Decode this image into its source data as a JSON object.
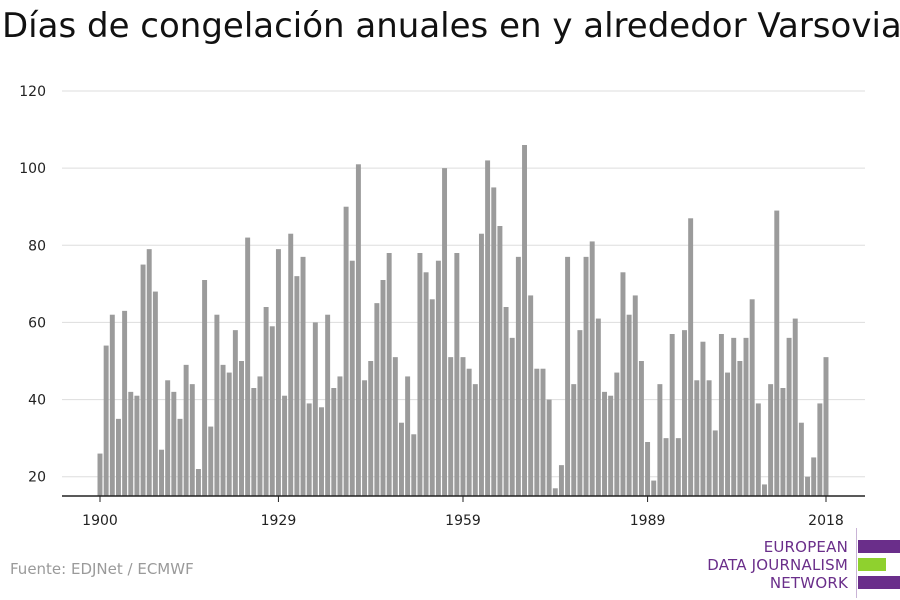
{
  "title": "Días de congelación anuales en y alrededor Varsovia",
  "source": "Fuente: EDJNet / ECMWF",
  "logo": {
    "line1": "EUROPEAN",
    "line2": "DATA JOURNALISM",
    "line3": "NETWORK",
    "colors": {
      "purple": "#6a2e8a",
      "green": "#8fd12e"
    }
  },
  "chart_data": {
    "type": "bar",
    "title": "Días de congelación anuales en y alrededor Varsovia",
    "xlabel": "",
    "ylabel": "",
    "x": [
      1900,
      1901,
      1902,
      1903,
      1904,
      1905,
      1906,
      1907,
      1908,
      1909,
      1910,
      1911,
      1912,
      1913,
      1914,
      1915,
      1916,
      1917,
      1918,
      1919,
      1920,
      1921,
      1922,
      1923,
      1924,
      1925,
      1926,
      1927,
      1928,
      1929,
      1930,
      1931,
      1932,
      1933,
      1934,
      1935,
      1936,
      1937,
      1938,
      1939,
      1940,
      1941,
      1942,
      1943,
      1944,
      1945,
      1946,
      1947,
      1948,
      1949,
      1950,
      1951,
      1952,
      1953,
      1954,
      1955,
      1956,
      1957,
      1958,
      1959,
      1960,
      1961,
      1962,
      1963,
      1964,
      1965,
      1966,
      1967,
      1968,
      1969,
      1970,
      1971,
      1972,
      1973,
      1974,
      1975,
      1976,
      1977,
      1978,
      1979,
      1980,
      1981,
      1982,
      1983,
      1984,
      1985,
      1986,
      1987,
      1988,
      1989,
      1990,
      1991,
      1992,
      1993,
      1994,
      1995,
      1996,
      1997,
      1998,
      1999,
      2000,
      2001,
      2002,
      2003,
      2004,
      2005,
      2006,
      2007,
      2008,
      2009,
      2010,
      2011,
      2012,
      2013,
      2014,
      2015,
      2016,
      2017,
      2018
    ],
    "values": [
      26,
      54,
      62,
      35,
      63,
      42,
      41,
      75,
      79,
      68,
      27,
      45,
      42,
      35,
      49,
      44,
      22,
      71,
      33,
      62,
      49,
      47,
      58,
      50,
      82,
      43,
      46,
      64,
      59,
      79,
      41,
      83,
      72,
      77,
      39,
      60,
      38,
      62,
      43,
      46,
      90,
      76,
      101,
      45,
      50,
      65,
      71,
      78,
      51,
      34,
      46,
      31,
      78,
      73,
      66,
      76,
      100,
      51,
      78,
      51,
      48,
      44,
      83,
      102,
      95,
      85,
      64,
      56,
      77,
      106,
      67,
      48,
      48,
      40,
      17,
      23,
      77,
      44,
      58,
      77,
      81,
      61,
      42,
      41,
      47,
      73,
      62,
      67,
      50,
      29,
      19,
      44,
      30,
      57,
      30,
      58,
      87,
      45,
      55,
      45,
      32,
      57,
      47,
      56,
      50,
      56,
      66,
      39,
      18,
      44,
      89,
      43,
      56,
      61,
      34,
      20,
      25,
      39,
      51
    ],
    "ylim": [
      15,
      120
    ],
    "yticks": [
      20,
      40,
      60,
      80,
      100,
      120
    ],
    "xticks": [
      1900,
      1929,
      1959,
      1989,
      2018
    ],
    "grid": true,
    "bar_color": "#9b9b9b",
    "grid_color": "#dddddd",
    "axis_color": "#222222"
  }
}
